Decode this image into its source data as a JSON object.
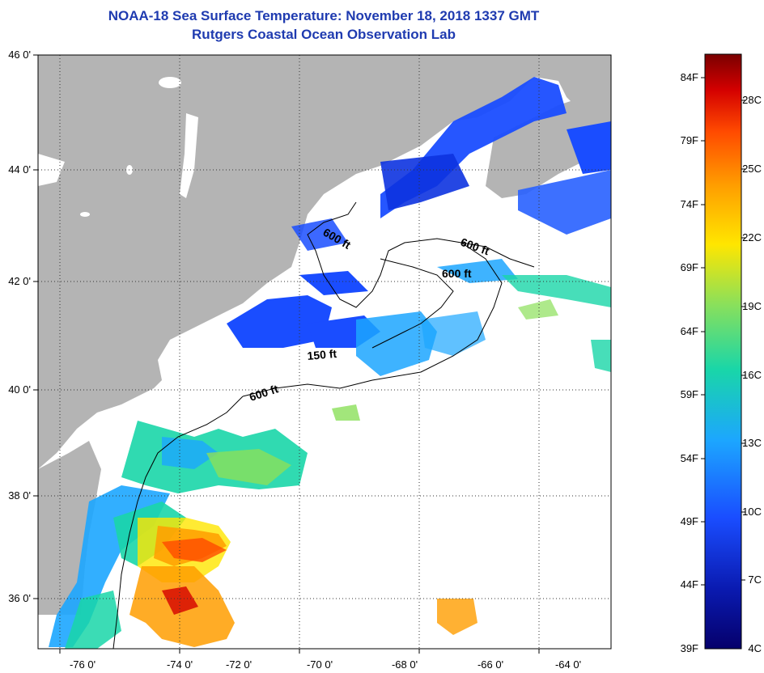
{
  "title": {
    "line1": "NOAA-18 Sea Surface Temperature:  November 18, 2018 1337 GMT",
    "line2": "Rutgers Coastal Ocean Observation Lab"
  },
  "map": {
    "lat_labels": [
      "46 0'",
      "44 0'",
      "42 0'",
      "40 0'",
      "38 0'",
      "36 0'"
    ],
    "lon_labels": [
      "-76 0'",
      "-74 0'",
      "-72 0'",
      "-70 0'",
      "-68 0'",
      "-66 0'",
      "-64 0'"
    ],
    "isobath_labels": [
      "600 ft",
      "600 ft",
      "600 ft",
      "150 ft",
      "600 ft"
    ],
    "colors": {
      "land": "#b4b4b4",
      "no_data": "#ffffff",
      "isobath": "#000000"
    }
  },
  "colorbar": {
    "fahrenheit_labels": [
      "84F",
      "79F",
      "74F",
      "69F",
      "64F",
      "59F",
      "54F",
      "49F",
      "44F",
      "39F"
    ],
    "celsius_labels": [
      "28C",
      "25C",
      "22C",
      "19C",
      "16C",
      "13C",
      "10C",
      "7C",
      "4C"
    ],
    "gradient": [
      "#7a0000",
      "#d40000",
      "#ff4a00",
      "#ff9d00",
      "#ffe600",
      "#8be05a",
      "#19d6a8",
      "#1ca6ff",
      "#1a4dff",
      "#0a1ab0",
      "#05006b"
    ]
  }
}
